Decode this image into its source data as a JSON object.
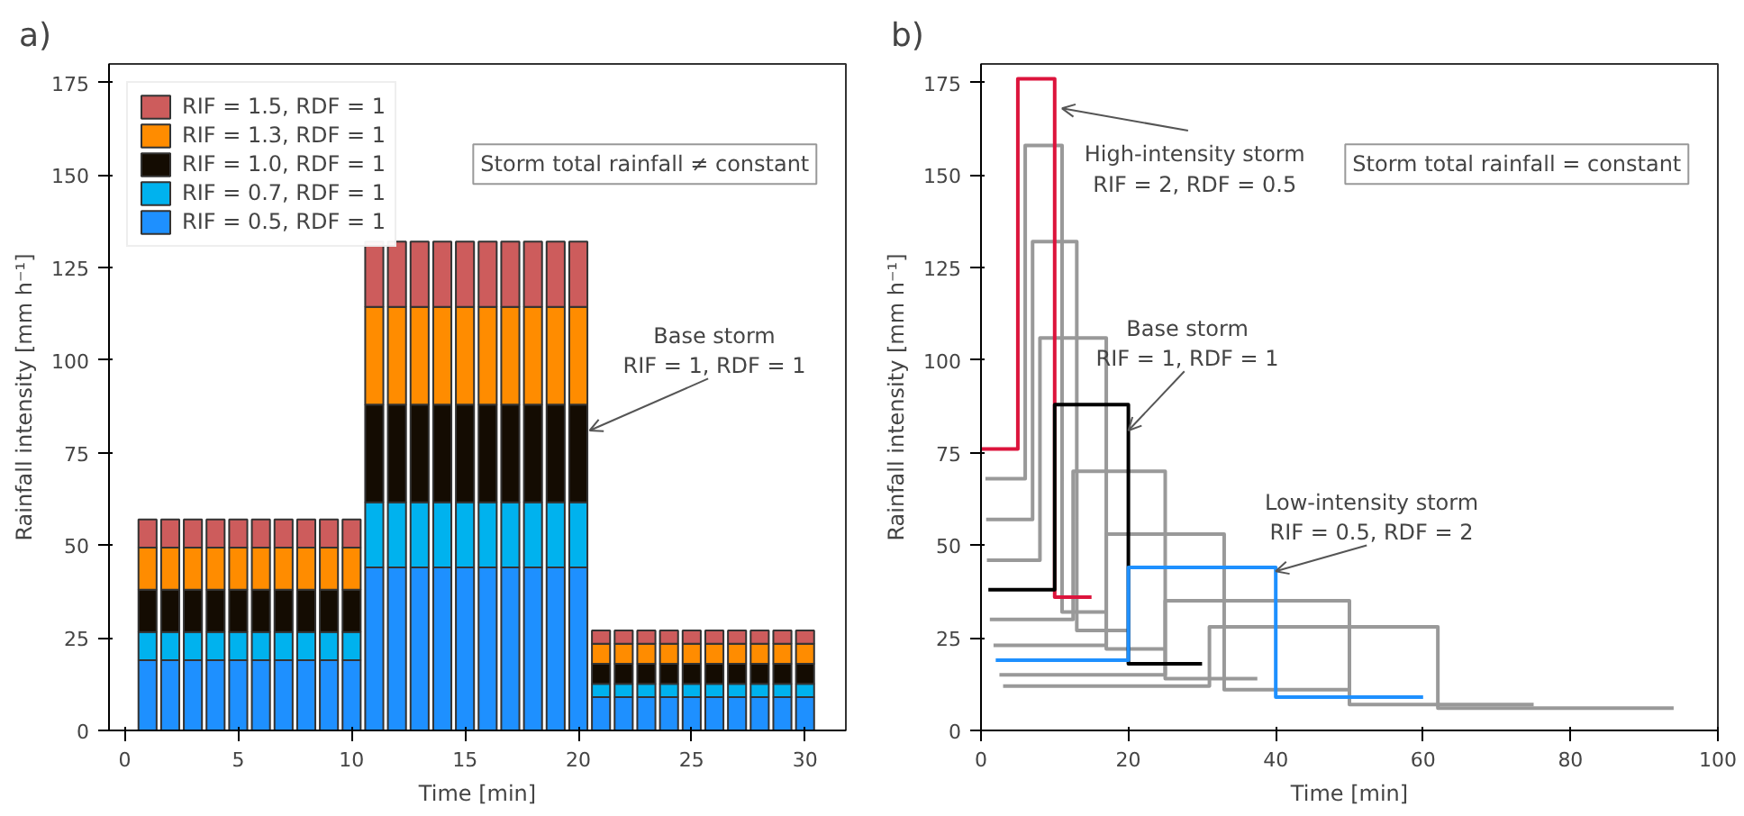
{
  "chart_data": [
    {
      "type": "bar",
      "title": "a)",
      "xlabel": "Time [min]",
      "ylabel": "Rainfall intensity [mm h⁻¹]",
      "stacked": true,
      "legend": "top left",
      "grid": false,
      "x": [
        1,
        2,
        3,
        4,
        5,
        6,
        7,
        8,
        9,
        10,
        11,
        12,
        13,
        14,
        15,
        16,
        17,
        18,
        19,
        20,
        21,
        22,
        23,
        24,
        25,
        26,
        27,
        28,
        29,
        30
      ],
      "xlim": [
        -0.7,
        31.8
      ],
      "xticks": [
        0,
        5,
        10,
        15,
        20,
        25,
        30
      ],
      "ylim": [
        0,
        180
      ],
      "yticks": [
        0,
        25,
        50,
        75,
        100,
        125,
        150,
        175
      ],
      "series": [
        {
          "name": "RIF = 0.5, RDF = 1",
          "color": "#1e90ff",
          "values": [
            19,
            19,
            19,
            19,
            19,
            19,
            19,
            19,
            19,
            19,
            44,
            44,
            44,
            44,
            44,
            44,
            44,
            44,
            44,
            44,
            9,
            9,
            9,
            9,
            9,
            9,
            9,
            9,
            9,
            9
          ]
        },
        {
          "name": "RIF = 0.7, RDF = 1",
          "color": "#00b2ee",
          "values": [
            7.6,
            7.6,
            7.6,
            7.6,
            7.6,
            7.6,
            7.6,
            7.6,
            7.6,
            7.6,
            17.6,
            17.6,
            17.6,
            17.6,
            17.6,
            17.6,
            17.6,
            17.6,
            17.6,
            17.6,
            3.6,
            3.6,
            3.6,
            3.6,
            3.6,
            3.6,
            3.6,
            3.6,
            3.6,
            3.6
          ]
        },
        {
          "name": "RIF = 1.0, RDF = 1",
          "color": "#140c02",
          "values": [
            11.4,
            11.4,
            11.4,
            11.4,
            11.4,
            11.4,
            11.4,
            11.4,
            11.4,
            11.4,
            26.4,
            26.4,
            26.4,
            26.4,
            26.4,
            26.4,
            26.4,
            26.4,
            26.4,
            26.4,
            5.4,
            5.4,
            5.4,
            5.4,
            5.4,
            5.4,
            5.4,
            5.4,
            5.4,
            5.4
          ]
        },
        {
          "name": "RIF = 1.3, RDF = 1",
          "color": "#ff8c00",
          "values": [
            11.4,
            11.4,
            11.4,
            11.4,
            11.4,
            11.4,
            11.4,
            11.4,
            11.4,
            11.4,
            26.4,
            26.4,
            26.4,
            26.4,
            26.4,
            26.4,
            26.4,
            26.4,
            26.4,
            26.4,
            5.4,
            5.4,
            5.4,
            5.4,
            5.4,
            5.4,
            5.4,
            5.4,
            5.4,
            5.4
          ]
        },
        {
          "name": "RIF = 1.5, RDF = 1",
          "color": "#cd5c5c",
          "values": [
            7.6,
            7.6,
            7.6,
            7.6,
            7.6,
            7.6,
            7.6,
            7.6,
            7.6,
            7.6,
            17.6,
            17.6,
            17.6,
            17.6,
            17.6,
            17.6,
            17.6,
            17.6,
            17.6,
            17.6,
            3.6,
            3.6,
            3.6,
            3.6,
            3.6,
            3.6,
            3.6,
            3.6,
            3.6,
            3.6
          ]
        }
      ],
      "annotations": [
        "Storm total rainfall ≠ constant",
        {
          "text": "Base storm\nRIF = 1, RDF = 1",
          "x": 20.5,
          "y": 81
        }
      ]
    },
    {
      "type": "line",
      "title": "b)",
      "xlabel": "Time [min]",
      "ylabel": "Rainfall intensity [mm h⁻¹]",
      "legend": false,
      "grid": false,
      "xlim": [
        0,
        100
      ],
      "xticks": [
        0,
        20,
        40,
        60,
        80,
        100
      ],
      "ylim": [
        0,
        180
      ],
      "yticks": [
        0,
        25,
        50,
        75,
        100,
        125,
        150,
        175
      ],
      "series": [
        {
          "color": "#999999",
          "x": [
            3,
            31,
            31,
            62,
            62,
            94
          ],
          "values": [
            12,
            12,
            28,
            28,
            6,
            6
          ]
        },
        {
          "color": "#999999",
          "x": [
            2.5,
            25,
            25,
            50,
            50,
            75
          ],
          "values": [
            15,
            15,
            35,
            35,
            7,
            7
          ]
        },
        {
          "color": "#999999",
          "x": [
            1.7,
            17,
            17,
            33,
            33,
            50
          ],
          "values": [
            23,
            23,
            53,
            53,
            11,
            11
          ]
        },
        {
          "color": "#999999",
          "x": [
            1.2,
            12.5,
            12.5,
            25,
            25,
            37.5
          ],
          "values": [
            30,
            30,
            70,
            70,
            14,
            14
          ]
        },
        {
          "color": "#999999",
          "x": [
            0.8,
            8,
            8,
            17,
            17,
            25
          ],
          "values": [
            46,
            46,
            106,
            106,
            22,
            22
          ]
        },
        {
          "color": "#999999",
          "x": [
            0.7,
            7,
            7,
            13,
            13,
            20
          ],
          "values": [
            57,
            57,
            132,
            132,
            27,
            27
          ]
        },
        {
          "color": "#999999",
          "x": [
            0.6,
            6,
            6,
            11,
            11,
            17
          ],
          "values": [
            68,
            68,
            158,
            158,
            32,
            32
          ]
        },
        {
          "color": "#dc143c",
          "x": [
            0,
            5,
            5,
            10,
            10,
            15
          ],
          "values": [
            76,
            76,
            176,
            176,
            36,
            36
          ]
        },
        {
          "color": "#000000",
          "x": [
            1,
            10,
            10,
            20,
            20,
            30
          ],
          "values": [
            38,
            38,
            88,
            88,
            18,
            18
          ]
        },
        {
          "color": "#1e90ff",
          "x": [
            2,
            20,
            20,
            40,
            40,
            60
          ],
          "values": [
            19,
            19,
            44,
            44,
            9,
            9
          ]
        }
      ],
      "annotations": [
        "Storm total rainfall = constant",
        {
          "text": "High-intensity storm\nRIF = 2, RDF = 0.5",
          "x": 11,
          "y": 168
        },
        {
          "text": "Base storm\nRIF = 1, RDF = 1",
          "x": 20,
          "y": 81
        },
        {
          "text": "Low-intensity storm\nRIF = 0.5, RDF = 2",
          "x": 40,
          "y": 43
        }
      ]
    }
  ]
}
